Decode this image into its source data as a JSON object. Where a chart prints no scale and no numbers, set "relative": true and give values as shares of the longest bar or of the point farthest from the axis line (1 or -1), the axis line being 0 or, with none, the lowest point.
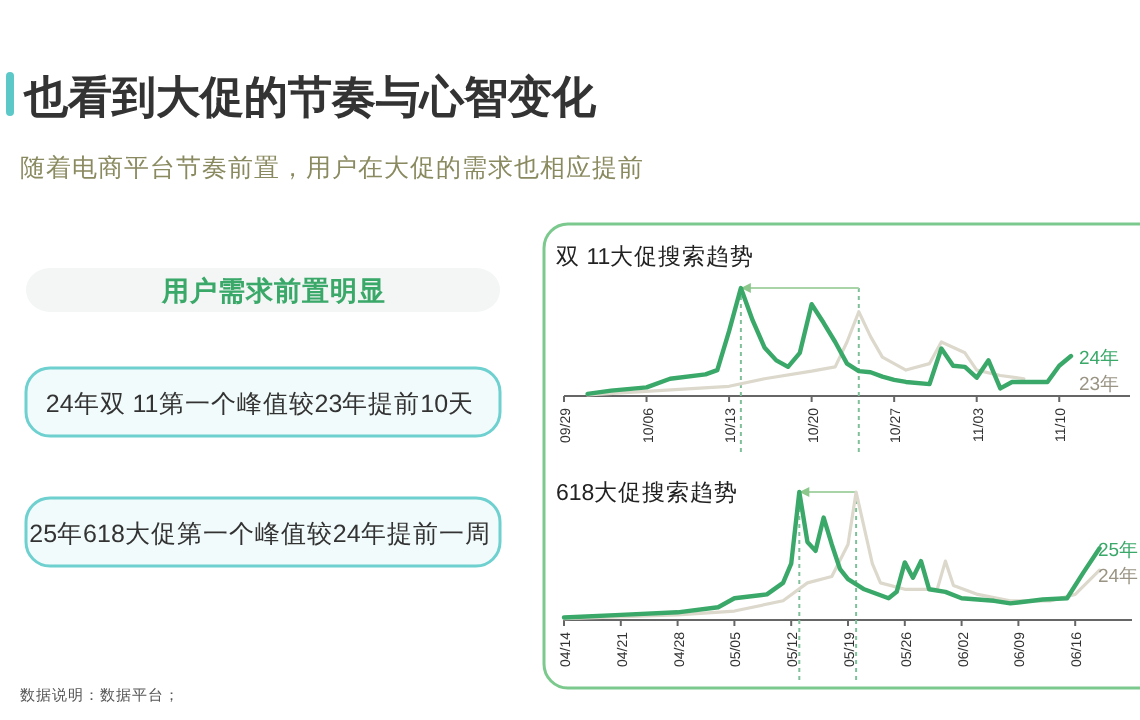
{
  "chart_data": [
    {
      "type": "other",
      "title": "也看到大促的节奏与心智变化",
      "subtitle": "随着电商平台节奏前置，用户在大促的需求也相应提前",
      "annotations": [
        "用户需求前置明显",
        "24年双 11第一个峰值较23年提前10天",
        "25年618大促第一个峰值较24年提前一周",
        "数据说明：数据平台；"
      ]
    },
    {
      "type": "line",
      "title": "双 11大促搜索趋势",
      "relative": true,
      "xlim": [
        "--09-29",
        "--11-16"
      ],
      "xticks": [
        {
          "value": "--09-29",
          "label": "09/29"
        },
        {
          "value": "--10-06",
          "label": "10/06"
        },
        {
          "value": "--10-13",
          "label": "10/13"
        },
        {
          "value": "--10-20",
          "label": "10/20"
        },
        {
          "value": "--10-27",
          "label": "10/27"
        },
        {
          "value": "--11-03",
          "label": "11/03"
        },
        {
          "value": "--11-10",
          "label": "11/10"
        }
      ],
      "ref_lines": [
        {
          "axis": "x",
          "value": "--10-14",
          "color": "#7fbf9a",
          "line_style": "dotted"
        },
        {
          "axis": "x",
          "value": "--10-24",
          "color": "#7fbf9a",
          "line_style": "dotted"
        }
      ],
      "series": [
        {
          "name": "23年",
          "color": "#dcd8cc",
          "x": [
            "--10-01",
            "--10-13",
            "--10-16",
            "--10-20",
            "--10-22",
            "--10-23",
            "--10-24",
            "--10-25",
            "--10-26",
            "--10-28",
            "--10-30",
            "--10-31",
            "--11-02",
            "--11-03",
            "--11-05",
            "--11-07"
          ],
          "values": [
            0.01,
            0.09,
            0.16,
            0.23,
            0.27,
            0.5,
            0.78,
            0.55,
            0.36,
            0.24,
            0.3,
            0.5,
            0.4,
            0.24,
            0.19,
            0.16
          ]
        },
        {
          "name": "24年",
          "color": "#3aa868",
          "x": [
            "--10-01",
            "--10-03",
            "--10-06",
            "--10-08",
            "--10-11",
            "--10-12",
            "--10-13",
            "--10-14",
            "--10-15",
            "--10-16",
            "--10-17",
            "--10-18",
            "--10-19",
            "--10-20",
            "--10-21",
            "--10-22",
            "--10-23",
            "--10-24",
            "--10-25",
            "--10-26",
            "--10-27",
            "--10-28",
            "--10-30",
            "--10-31",
            "--11-01",
            "--11-02",
            "--11-03",
            "--11-04",
            "--11-05",
            "--11-06",
            "--11-09",
            "--11-10",
            "--11-11"
          ],
          "values": [
            0.02,
            0.05,
            0.08,
            0.16,
            0.2,
            0.24,
            0.6,
            1.0,
            0.7,
            0.45,
            0.33,
            0.27,
            0.4,
            0.85,
            0.68,
            0.5,
            0.3,
            0.23,
            0.22,
            0.18,
            0.15,
            0.13,
            0.11,
            0.44,
            0.28,
            0.27,
            0.17,
            0.33,
            0.07,
            0.13,
            0.13,
            0.28,
            0.37
          ]
        }
      ]
    },
    {
      "type": "line",
      "title": "618大促搜索趋势",
      "relative": true,
      "xlim": [
        "--04-14",
        "--06-23"
      ],
      "xticks": [
        {
          "value": "--04-14",
          "label": "04/14"
        },
        {
          "value": "--04-21",
          "label": "04/21"
        },
        {
          "value": "--04-28",
          "label": "04/28"
        },
        {
          "value": "--05-05",
          "label": "05/05"
        },
        {
          "value": "--05-12",
          "label": "05/12"
        },
        {
          "value": "--05-19",
          "label": "05/19"
        },
        {
          "value": "--05-26",
          "label": "05/26"
        },
        {
          "value": "--06-02",
          "label": "06/02"
        },
        {
          "value": "--06-09",
          "label": "06/09"
        },
        {
          "value": "--06-16",
          "label": "06/16"
        }
      ],
      "ref_lines": [
        {
          "axis": "x",
          "value": "--05-13",
          "color": "#7fbf9a",
          "line_style": "dotted"
        },
        {
          "axis": "x",
          "value": "--05-20",
          "color": "#7fbf9a",
          "line_style": "dotted"
        }
      ],
      "series": [
        {
          "name": "24年",
          "color": "#dcd8cc",
          "x": [
            "--04-14",
            "--04-28",
            "--05-05",
            "--05-11",
            "--05-14",
            "--05-17",
            "--05-19",
            "--05-20",
            "--05-22",
            "--05-23",
            "--05-26",
            "--05-30",
            "--05-31",
            "--06-01",
            "--06-04",
            "--06-08",
            "--06-13",
            "--06-16",
            "--06-19"
          ],
          "values": [
            0.01,
            0.04,
            0.07,
            0.15,
            0.29,
            0.34,
            0.59,
            1.0,
            0.44,
            0.29,
            0.24,
            0.24,
            0.46,
            0.27,
            0.2,
            0.15,
            0.15,
            0.2,
            0.39
          ]
        },
        {
          "name": "25年",
          "color": "#3aa868",
          "x": [
            "--04-14",
            "--04-21",
            "--04-28",
            "--05-03",
            "--05-05",
            "--05-09",
            "--05-11",
            "--05-12",
            "--05-13",
            "--05-14",
            "--05-15",
            "--05-16",
            "--05-17",
            "--05-18",
            "--05-19",
            "--05-21",
            "--05-24",
            "--05-25",
            "--05-26",
            "--05-27",
            "--05-28",
            "--05-29",
            "--05-31",
            "--06-02",
            "--06-06",
            "--06-08",
            "--06-12",
            "--06-15",
            "--06-17",
            "--06-19"
          ],
          "values": [
            0.02,
            0.04,
            0.06,
            0.1,
            0.17,
            0.2,
            0.29,
            0.44,
            1.0,
            0.61,
            0.54,
            0.8,
            0.59,
            0.4,
            0.32,
            0.24,
            0.17,
            0.22,
            0.45,
            0.33,
            0.46,
            0.24,
            0.22,
            0.17,
            0.15,
            0.13,
            0.16,
            0.17,
            0.37,
            0.56
          ]
        }
      ]
    }
  ]
}
